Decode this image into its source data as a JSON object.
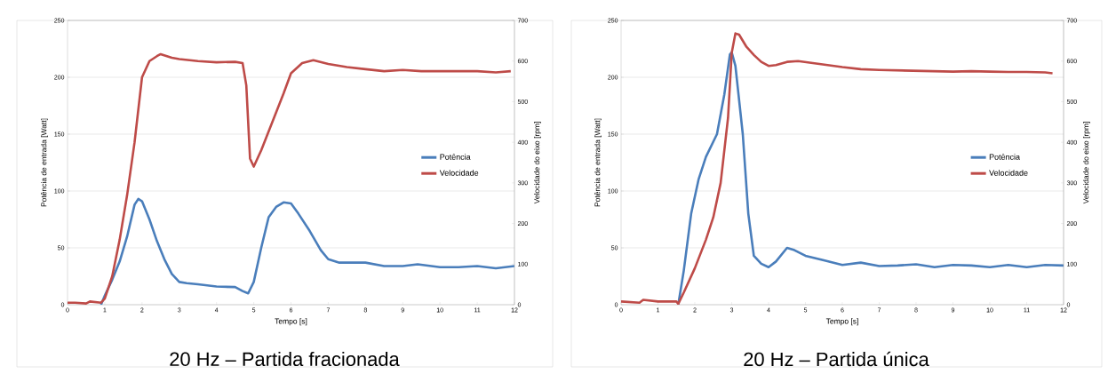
{
  "chart_data": [
    {
      "type": "line",
      "title": "20 Hz – Partida fracionada",
      "xlabel": "Tempo [s]",
      "ylabel": "Potência de entrada [Watt]",
      "y2label": "Velocidade do eixo [rpm]",
      "xlim": [
        0,
        12
      ],
      "xticks": [
        0,
        1,
        2,
        3,
        4,
        5,
        6,
        7,
        8,
        9,
        10,
        11,
        12
      ],
      "ylim": [
        0,
        250
      ],
      "yticks": [
        0,
        50,
        100,
        150,
        200,
        250
      ],
      "y2lim": [
        0,
        700
      ],
      "y2ticks": [
        0,
        100,
        200,
        300,
        400,
        500,
        600,
        700
      ],
      "grid": "y",
      "legend": "right",
      "series": [
        {
          "name": "Potência",
          "color": "#4a7ebb",
          "x": [
            0.9,
            1.0,
            1.2,
            1.4,
            1.6,
            1.8,
            1.9,
            2.0,
            2.2,
            2.4,
            2.6,
            2.8,
            3.0,
            3.2,
            3.5,
            4.0,
            4.5,
            4.7,
            4.85,
            5.0,
            5.2,
            5.4,
            5.6,
            5.8,
            6.0,
            6.2,
            6.5,
            6.8,
            7.0,
            7.3,
            7.8,
            8.0,
            8.5,
            9.0,
            9.4,
            10.0,
            10.5,
            11.0,
            11.5,
            12.0
          ],
          "values": [
            0,
            8,
            22,
            38,
            60,
            88,
            93,
            91,
            75,
            56,
            40,
            27,
            20,
            19,
            18,
            16,
            15.5,
            12,
            10,
            20,
            50,
            77,
            86,
            90,
            89,
            80,
            65,
            48,
            40,
            37,
            37,
            37,
            34,
            34,
            35.5,
            33,
            33,
            34,
            32,
            34
          ]
        },
        {
          "name": "Velocidade",
          "color": "#be4b48",
          "axis": "y2",
          "x": [
            0,
            0.2,
            0.5,
            0.6,
            0.9,
            1.0,
            1.2,
            1.4,
            1.6,
            1.8,
            2.0,
            2.2,
            2.4,
            2.5,
            2.8,
            3.0,
            3.5,
            4.0,
            4.5,
            4.7,
            4.8,
            4.9,
            5.0,
            5.2,
            5.5,
            5.8,
            6.0,
            6.3,
            6.6,
            7.0,
            7.5,
            8.0,
            8.5,
            9.0,
            9.5,
            10.0,
            10.5,
            11.0,
            11.5,
            11.9
          ],
          "values": [
            5,
            5,
            3,
            8,
            5,
            15,
            70,
            160,
            270,
            400,
            560,
            600,
            612,
            617,
            608,
            605,
            600,
            597,
            598,
            595,
            540,
            360,
            340,
            380,
            450,
            520,
            570,
            595,
            602,
            593,
            585,
            580,
            575,
            578,
            575,
            575,
            575,
            575,
            572,
            575
          ]
        }
      ]
    },
    {
      "type": "line",
      "title": "20 Hz – Partida única",
      "xlabel": "Tempo [s]",
      "ylabel": "Potência de entrada [Watt]",
      "y2label": "Velocidade do eixo [rpm]",
      "xlim": [
        0,
        12
      ],
      "xticks": [
        0,
        1,
        2,
        3,
        4,
        5,
        6,
        7,
        8,
        9,
        10,
        11,
        12
      ],
      "ylim": [
        0,
        250
      ],
      "yticks": [
        0,
        50,
        100,
        150,
        200,
        250
      ],
      "y2lim": [
        0,
        700
      ],
      "y2ticks": [
        0,
        100,
        200,
        300,
        400,
        500,
        600,
        700
      ],
      "grid": "y",
      "legend": "right",
      "series": [
        {
          "name": "Potência",
          "color": "#4a7ebb",
          "x": [
            1.55,
            1.7,
            1.9,
            2.1,
            2.3,
            2.6,
            2.8,
            2.95,
            3.0,
            3.1,
            3.3,
            3.45,
            3.6,
            3.8,
            4.0,
            4.2,
            4.5,
            4.7,
            5.0,
            5.5,
            6.0,
            6.5,
            7.0,
            7.5,
            8.0,
            8.5,
            9.0,
            9.5,
            10.0,
            10.5,
            11.0,
            11.5,
            12.0
          ],
          "values": [
            0,
            30,
            80,
            110,
            130,
            150,
            185,
            220,
            222,
            210,
            150,
            80,
            43,
            36,
            33,
            38,
            50,
            48,
            43,
            39,
            35,
            37,
            34,
            34.5,
            35.5,
            33,
            35,
            34.5,
            33,
            35,
            33,
            35,
            34.5
          ]
        },
        {
          "name": "Velocidade",
          "color": "#be4b48",
          "axis": "y2",
          "x": [
            0,
            0.5,
            0.6,
            1.0,
            1.5,
            1.55,
            1.7,
            2.0,
            2.3,
            2.5,
            2.7,
            2.9,
            3.0,
            3.1,
            3.2,
            3.4,
            3.6,
            3.8,
            4.0,
            4.2,
            4.5,
            4.8,
            5.2,
            5.6,
            6.0,
            6.5,
            7.0,
            7.5,
            8.0,
            8.5,
            9.0,
            9.5,
            10.0,
            10.5,
            11.0,
            11.5,
            11.7
          ],
          "values": [
            8,
            5,
            12,
            8,
            8,
            2,
            30,
            90,
            160,
            215,
            300,
            460,
            620,
            668,
            665,
            635,
            615,
            598,
            588,
            590,
            598,
            600,
            595,
            590,
            585,
            580,
            578,
            577,
            576,
            575,
            574,
            575,
            574,
            573,
            573,
            572,
            570
          ]
        }
      ]
    }
  ]
}
